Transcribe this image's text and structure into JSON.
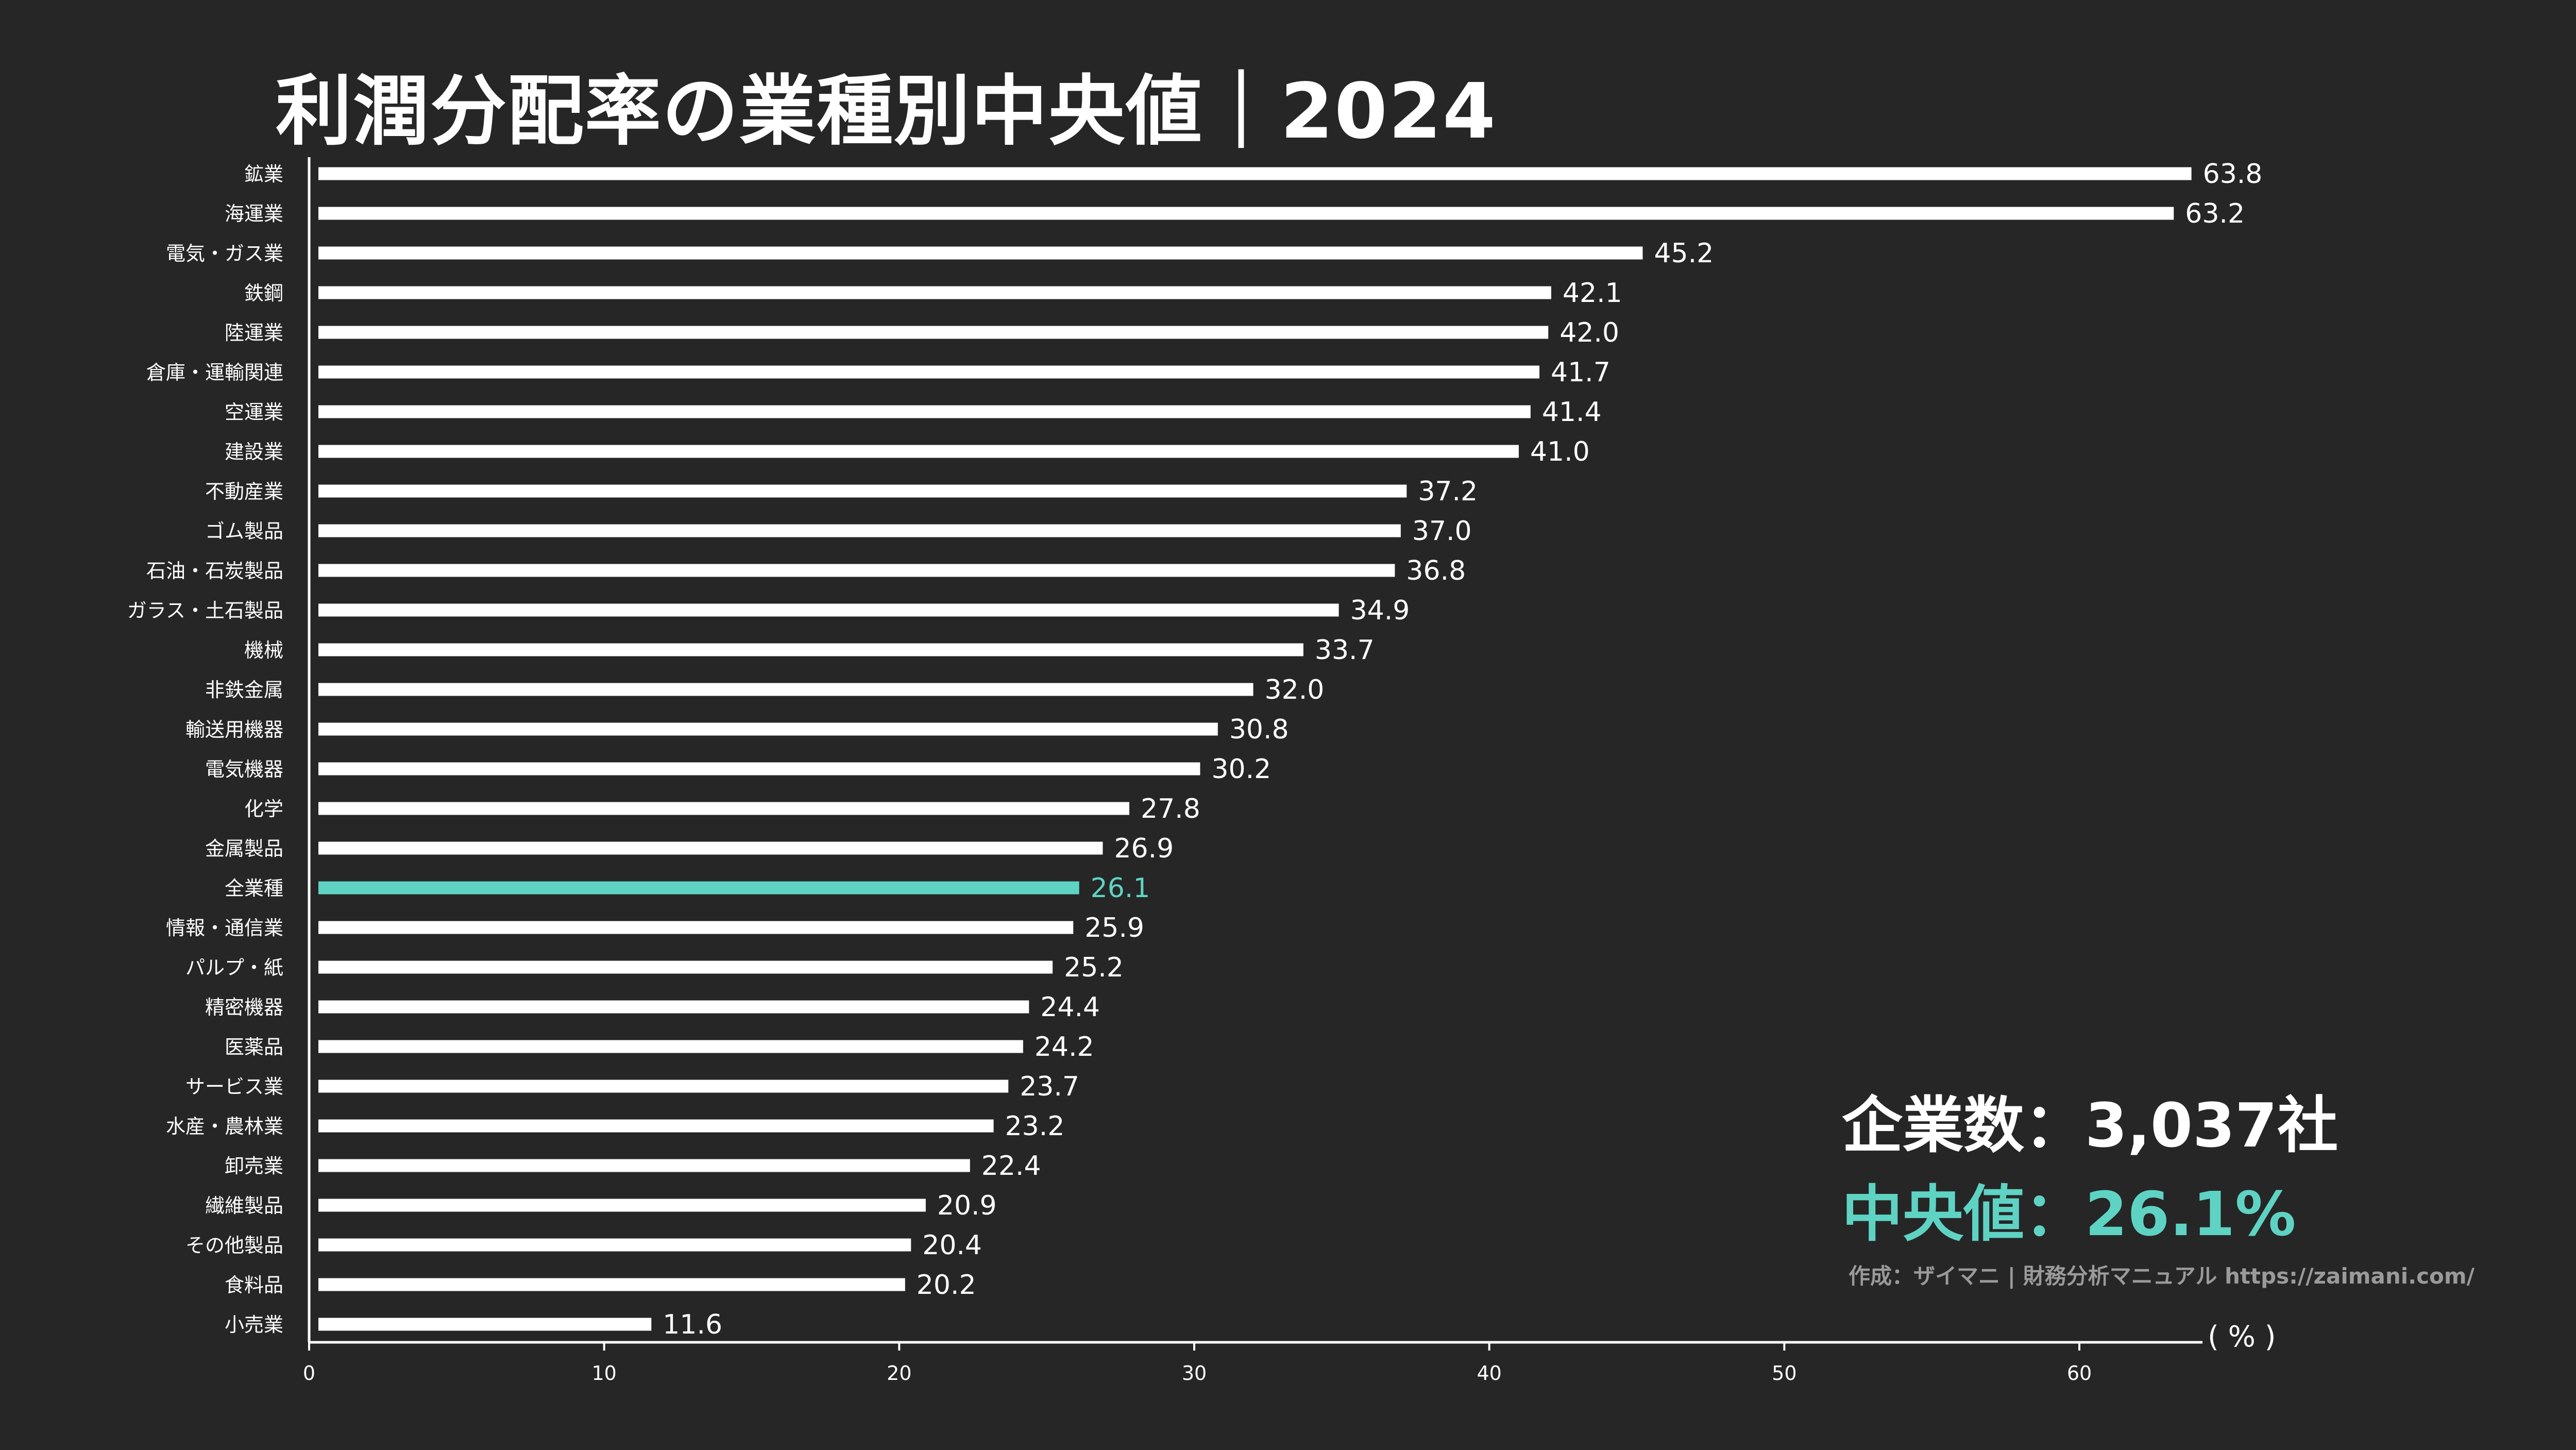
{
  "title": "利潤分配率の業種別中央値｜2024",
  "summary": {
    "company_count_label": "企業数：3,037社",
    "median_label": "中央値：26.1%"
  },
  "credit": "作成：ザイマニ | 財務分析マニュアル https://zaimani.com/",
  "colors": {
    "background": "#262626",
    "bar": "#ffffff",
    "highlight": "#5fd3c3",
    "text": "#ffffff",
    "muted": "#9a9a9a"
  },
  "chart_data": {
    "type": "bar",
    "orientation": "horizontal",
    "title": "利潤分配率の業種別中央値｜2024",
    "xlabel": "",
    "ylabel": "",
    "unit_label": "( % )",
    "xlim": [
      0,
      64
    ],
    "xticks": [
      0,
      10,
      20,
      30,
      40,
      50,
      60
    ],
    "highlight_category": "全業種",
    "categories": [
      "鉱業",
      "海運業",
      "電気・ガス業",
      "鉄鋼",
      "陸運業",
      "倉庫・運輸関連",
      "空運業",
      "建設業",
      "不動産業",
      "ゴム製品",
      "石油・石炭製品",
      "ガラス・土石製品",
      "機械",
      "非鉄金属",
      "輸送用機器",
      "電気機器",
      "化学",
      "金属製品",
      "全業種",
      "情報・通信業",
      "パルプ・紙",
      "精密機器",
      "医薬品",
      "サービス業",
      "水産・農林業",
      "卸売業",
      "繊維製品",
      "その他製品",
      "食料品",
      "小売業"
    ],
    "values": [
      63.8,
      63.2,
      45.2,
      42.1,
      42.0,
      41.7,
      41.4,
      41.0,
      37.2,
      37.0,
      36.8,
      34.9,
      33.7,
      32.0,
      30.8,
      30.2,
      27.8,
      26.9,
      26.1,
      25.9,
      25.2,
      24.4,
      24.2,
      23.7,
      23.2,
      22.4,
      20.9,
      20.4,
      20.2,
      11.6
    ],
    "value_labels": [
      "63.8",
      "63.2",
      "45.2",
      "42.1",
      "42.0",
      "41.7",
      "41.4",
      "41.0",
      "37.2",
      "37.0",
      "36.8",
      "34.9",
      "33.7",
      "32.0",
      "30.8",
      "30.2",
      "27.8",
      "26.9",
      "26.1",
      "25.9",
      "25.2",
      "24.4",
      "24.2",
      "23.7",
      "23.2",
      "22.4",
      "20.9",
      "20.4",
      "20.2",
      "11.6"
    ]
  }
}
